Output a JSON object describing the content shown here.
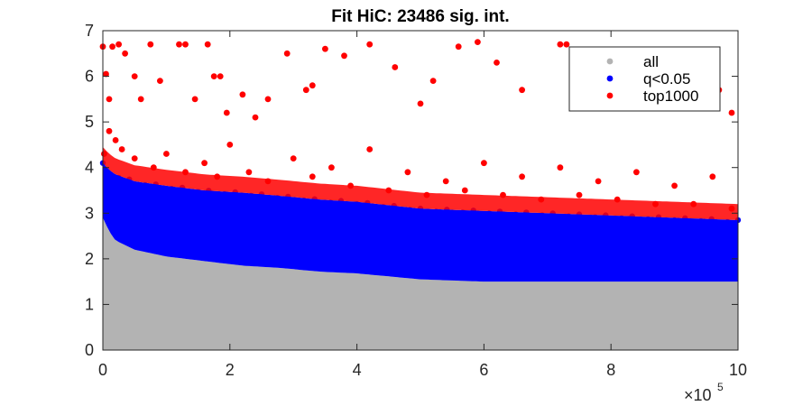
{
  "chart_data": {
    "type": "scatter",
    "title": "Fit HiC: 23486 sig. int.",
    "xlabel": "",
    "ylabel": "",
    "x_exponent_label": {
      "base": "×10",
      "exponent": "5"
    },
    "xlim": [
      0,
      10
    ],
    "ylim": [
      0,
      7
    ],
    "x_ticks": [
      0,
      2,
      4,
      6,
      8,
      10
    ],
    "y_ticks": [
      0,
      1,
      2,
      3,
      4,
      5,
      6,
      7
    ],
    "grid": false,
    "legend_position": "top-right",
    "series": [
      {
        "name": "all",
        "color": "#b3b3b3",
        "upper_envelope": {
          "x": [
            0.0,
            0.1,
            0.2,
            0.5,
            1.0,
            1.6,
            2.2,
            2.8,
            3.4,
            4.0,
            5.0,
            6.0,
            7.0,
            8.0,
            9.0,
            10.0
          ],
          "y": [
            2.9,
            2.6,
            2.4,
            2.2,
            2.05,
            1.95,
            1.85,
            1.8,
            1.72,
            1.68,
            1.55,
            1.5,
            1.5,
            1.5,
            1.5,
            1.5
          ]
        }
      },
      {
        "name": "q<0.05",
        "color": "#0000ff",
        "band_lower": {
          "x": [
            0.0,
            0.1,
            0.2,
            0.5,
            1.0,
            1.6,
            2.2,
            2.8,
            3.4,
            4.0,
            5.0,
            6.0,
            7.0,
            8.0,
            9.0,
            10.0
          ],
          "y": [
            2.9,
            2.6,
            2.4,
            2.2,
            2.05,
            1.95,
            1.85,
            1.8,
            1.72,
            1.68,
            1.55,
            1.5,
            1.5,
            1.5,
            1.5,
            1.5
          ]
        },
        "band_upper": {
          "x": [
            0.0,
            0.1,
            0.2,
            0.5,
            1.0,
            1.6,
            2.2,
            2.8,
            3.4,
            4.0,
            5.0,
            6.0,
            7.0,
            8.0,
            9.0,
            10.0
          ],
          "y": [
            4.1,
            3.95,
            3.85,
            3.7,
            3.6,
            3.5,
            3.45,
            3.38,
            3.3,
            3.25,
            3.1,
            3.05,
            3.0,
            2.95,
            2.9,
            2.85
          ]
        }
      },
      {
        "name": "top1000",
        "color": "#ff0000",
        "points": [
          [
            0.0,
            6.65
          ],
          [
            0.05,
            6.05
          ],
          [
            0.1,
            5.5
          ],
          [
            0.15,
            6.65
          ],
          [
            0.25,
            6.7
          ],
          [
            0.35,
            6.5
          ],
          [
            0.5,
            6.0
          ],
          [
            0.6,
            5.5
          ],
          [
            0.75,
            6.7
          ],
          [
            0.9,
            5.9
          ],
          [
            1.2,
            6.7
          ],
          [
            1.3,
            6.7
          ],
          [
            1.45,
            5.5
          ],
          [
            1.65,
            6.7
          ],
          [
            1.75,
            6.0
          ],
          [
            1.85,
            6.0
          ],
          [
            1.95,
            5.2
          ],
          [
            2.2,
            5.6
          ],
          [
            2.4,
            5.1
          ],
          [
            2.6,
            5.5
          ],
          [
            2.9,
            6.5
          ],
          [
            3.2,
            5.7
          ],
          [
            3.3,
            5.8
          ],
          [
            3.5,
            6.6
          ],
          [
            3.8,
            6.45
          ],
          [
            4.2,
            6.7
          ],
          [
            4.6,
            6.2
          ],
          [
            5.0,
            5.4
          ],
          [
            5.2,
            5.9
          ],
          [
            5.6,
            6.65
          ],
          [
            5.9,
            6.75
          ],
          [
            6.2,
            6.3
          ],
          [
            6.6,
            5.7
          ],
          [
            7.2,
            6.7
          ],
          [
            7.3,
            6.7
          ],
          [
            7.5,
            6.1
          ],
          [
            7.9,
            5.6
          ],
          [
            8.4,
            6.0
          ],
          [
            8.6,
            5.7
          ],
          [
            9.0,
            6.1
          ],
          [
            9.3,
            5.3
          ],
          [
            9.7,
            5.7
          ],
          [
            9.9,
            5.2
          ],
          [
            0.02,
            4.3
          ],
          [
            0.1,
            4.8
          ],
          [
            0.2,
            4.6
          ],
          [
            0.3,
            4.4
          ],
          [
            0.5,
            4.2
          ],
          [
            0.8,
            4.0
          ],
          [
            1.0,
            4.3
          ],
          [
            1.3,
            3.9
          ],
          [
            1.6,
            4.1
          ],
          [
            1.8,
            3.8
          ],
          [
            2.0,
            4.5
          ],
          [
            2.3,
            3.9
          ],
          [
            2.6,
            3.7
          ],
          [
            3.0,
            4.2
          ],
          [
            3.3,
            3.8
          ],
          [
            3.6,
            4.0
          ],
          [
            3.9,
            3.6
          ],
          [
            4.2,
            4.4
          ],
          [
            4.5,
            3.5
          ],
          [
            4.8,
            3.9
          ],
          [
            5.1,
            3.4
          ],
          [
            5.4,
            3.7
          ],
          [
            5.7,
            3.5
          ],
          [
            6.0,
            4.1
          ],
          [
            6.3,
            3.4
          ],
          [
            6.6,
            3.8
          ],
          [
            6.9,
            3.3
          ],
          [
            7.2,
            4.0
          ],
          [
            7.5,
            3.4
          ],
          [
            7.8,
            3.7
          ],
          [
            8.1,
            3.3
          ],
          [
            8.4,
            3.9
          ],
          [
            8.7,
            3.2
          ],
          [
            9.0,
            3.6
          ],
          [
            9.3,
            3.2
          ],
          [
            9.6,
            3.8
          ],
          [
            9.9,
            3.1
          ]
        ]
      }
    ]
  }
}
